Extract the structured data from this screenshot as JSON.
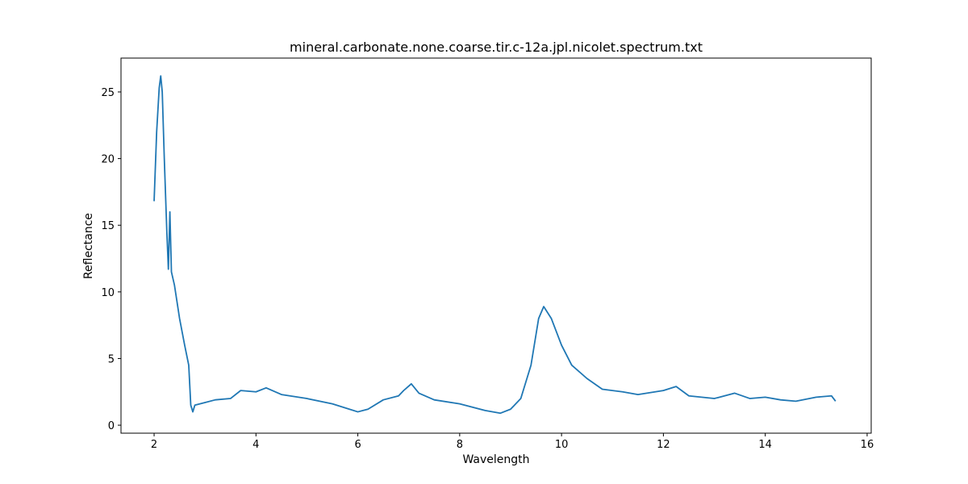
{
  "chart_data": {
    "type": "line",
    "title": "mineral.carbonate.none.coarse.tir.c-12a.jpl.nicolet.spectrum.txt",
    "xlabel": "Wavelength",
    "ylabel": "Reflectance",
    "color": "#1f77b4",
    "x": [
      2.0,
      2.05,
      2.1,
      2.13,
      2.16,
      2.2,
      2.25,
      2.28,
      2.31,
      2.34,
      2.4,
      2.5,
      2.6,
      2.68,
      2.72,
      2.76,
      2.8,
      3.0,
      3.2,
      3.5,
      3.7,
      4.0,
      4.2,
      4.5,
      5.0,
      5.5,
      6.0,
      6.2,
      6.5,
      6.8,
      6.9,
      7.05,
      7.2,
      7.5,
      8.0,
      8.5,
      8.8,
      9.0,
      9.2,
      9.4,
      9.55,
      9.65,
      9.8,
      10.0,
      10.2,
      10.5,
      10.8,
      11.2,
      11.5,
      12.0,
      12.25,
      12.5,
      13.0,
      13.4,
      13.7,
      14.0,
      14.3,
      14.6,
      15.0,
      15.3,
      15.38
    ],
    "values": [
      16.8,
      22.0,
      25.3,
      26.2,
      25.0,
      20.0,
      14.5,
      11.7,
      16.0,
      11.5,
      10.5,
      8.0,
      6.0,
      4.5,
      1.5,
      1.0,
      1.5,
      1.7,
      1.9,
      2.0,
      2.6,
      2.5,
      2.8,
      2.3,
      2.0,
      1.6,
      1.0,
      1.2,
      1.9,
      2.2,
      2.6,
      3.1,
      2.4,
      1.9,
      1.6,
      1.1,
      0.9,
      1.2,
      2.0,
      4.5,
      8.0,
      8.9,
      8.0,
      6.0,
      4.5,
      3.5,
      2.7,
      2.5,
      2.3,
      2.6,
      2.9,
      2.2,
      2.0,
      2.4,
      2.0,
      2.1,
      1.9,
      1.8,
      2.1,
      2.2,
      1.8
    ],
    "xlim": [
      1.35,
      16.08
    ],
    "xticks": [
      2,
      4,
      6,
      8,
      10,
      12,
      14,
      16
    ],
    "ylim": [
      -0.6,
      27.54
    ],
    "yticks": [
      0,
      5,
      10,
      15,
      20,
      25
    ]
  }
}
